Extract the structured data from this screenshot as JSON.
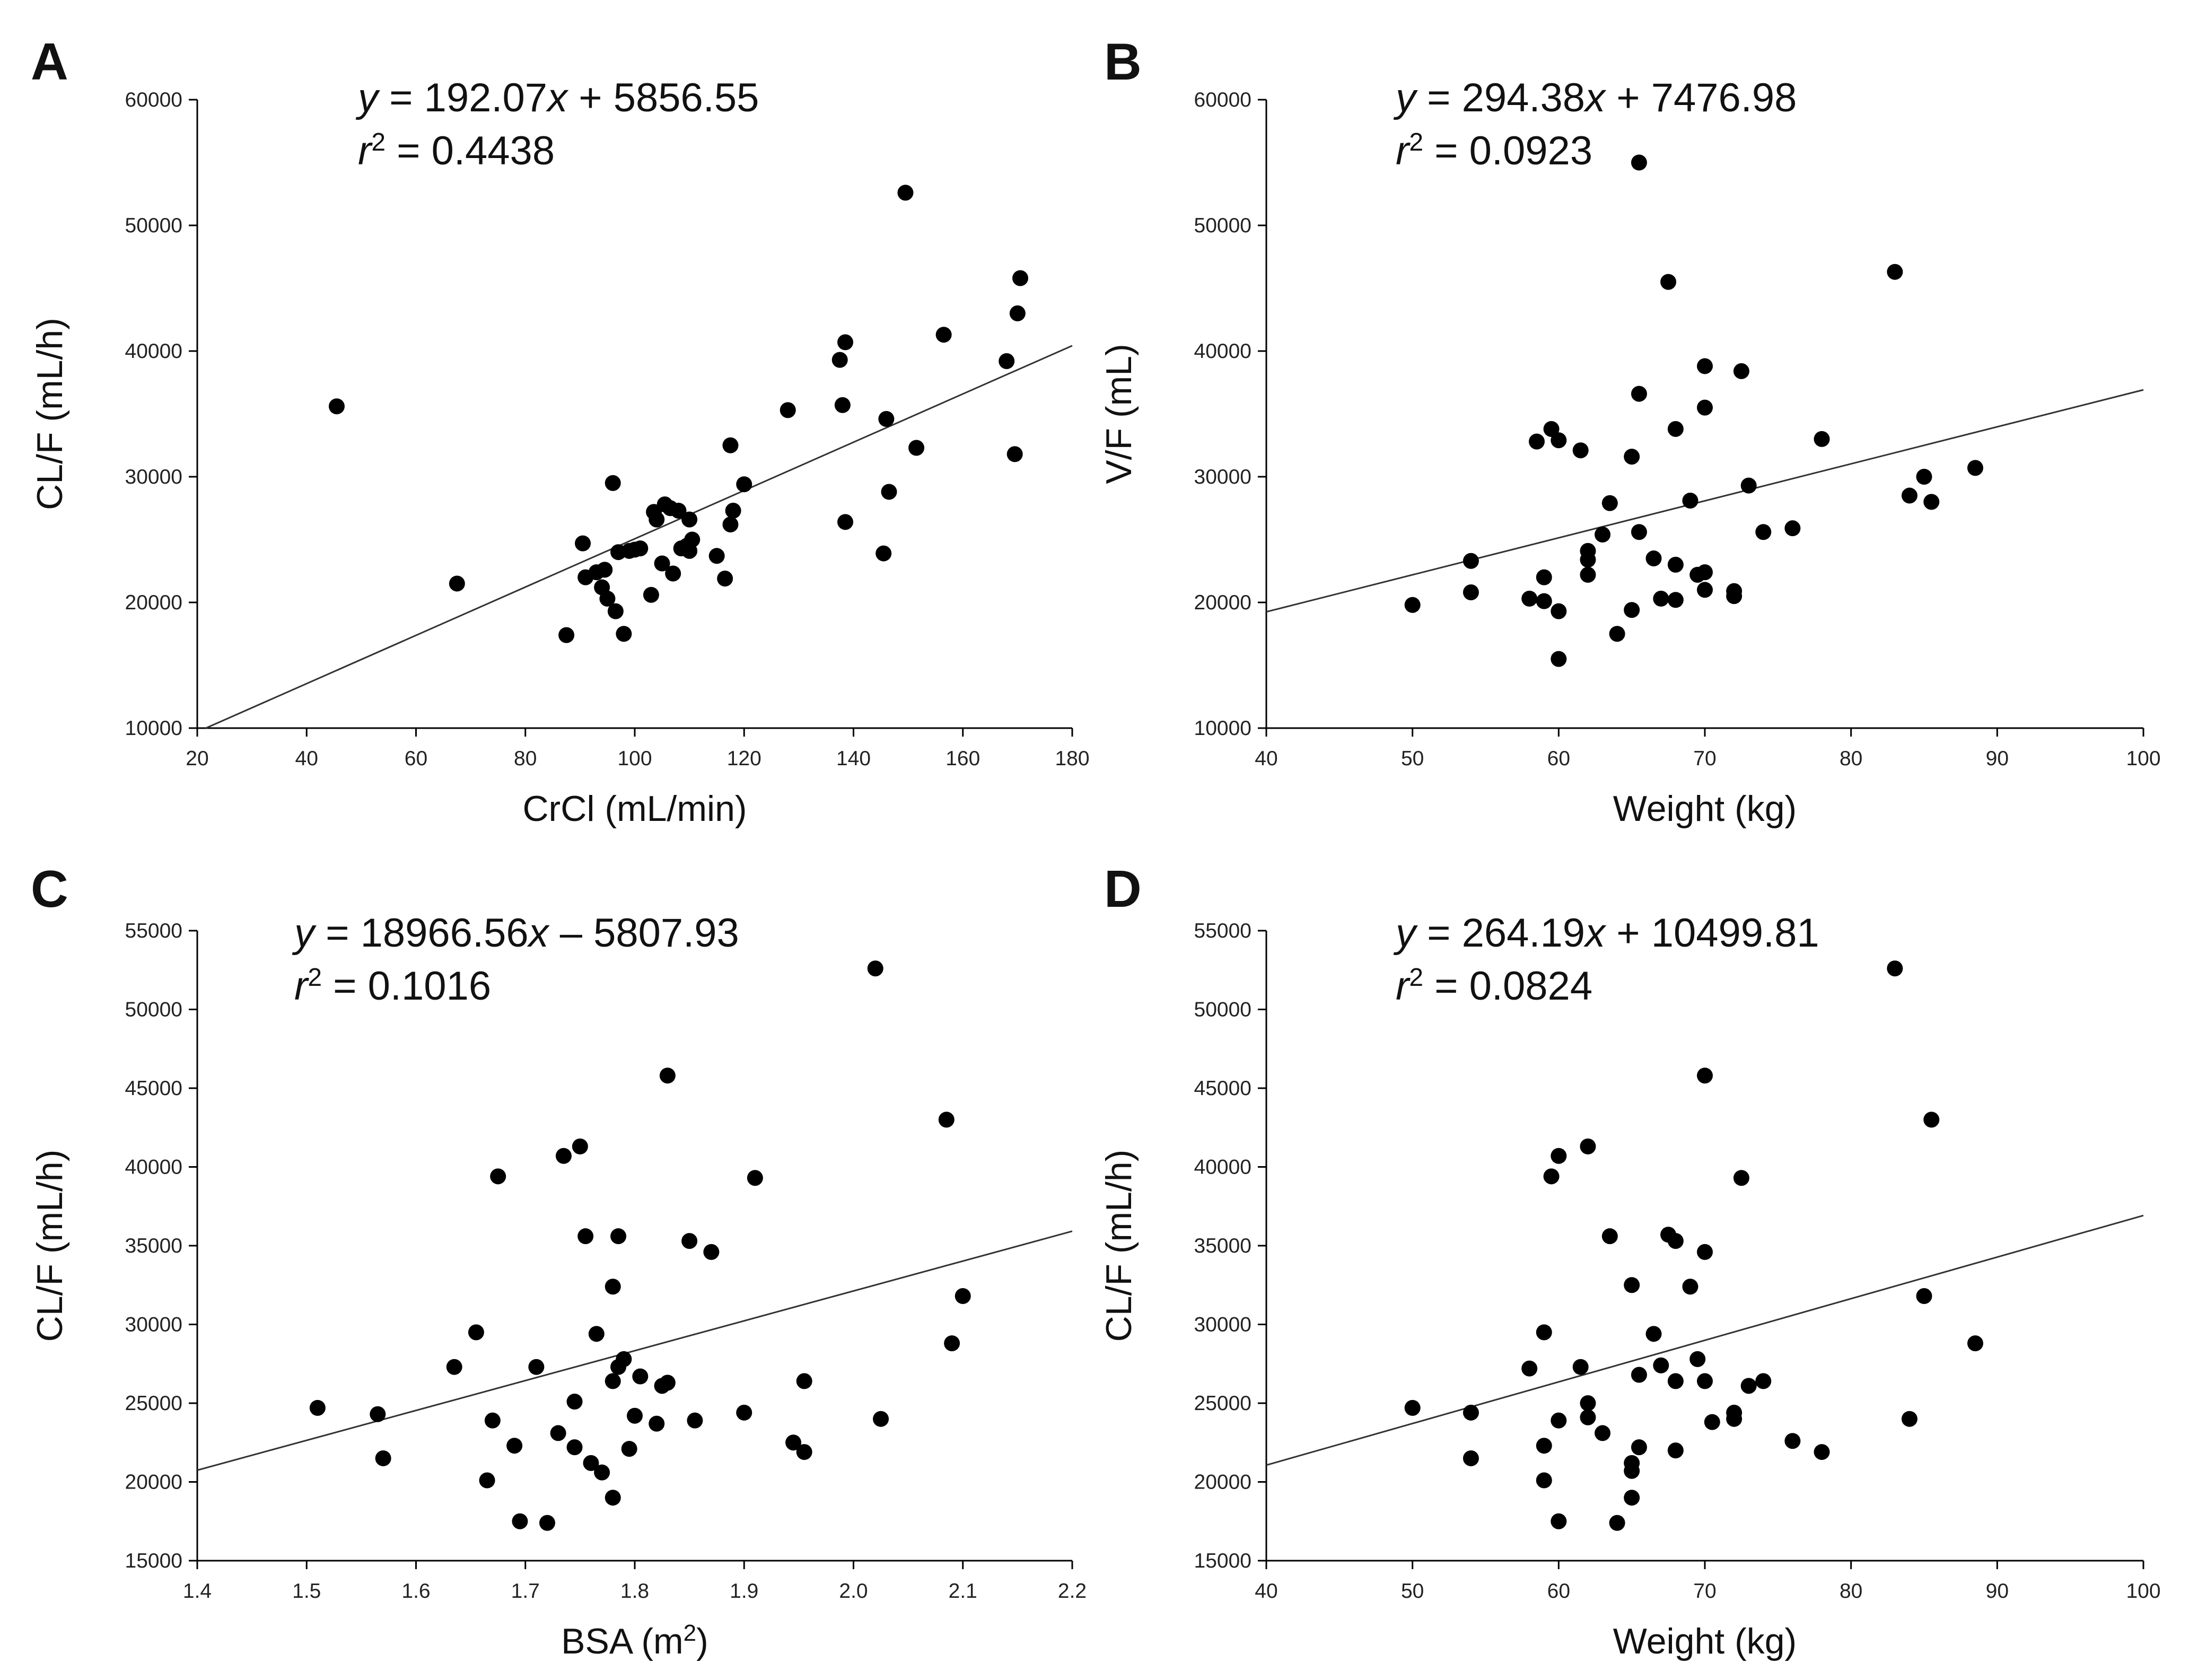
{
  "chart_data": [
    {
      "panel": "A",
      "type": "scatter",
      "xlabel": "CrCl (mL/min)",
      "ylabel": "CL/F (mL/h)",
      "xlim": [
        20,
        180
      ],
      "ylim": [
        10000,
        60000
      ],
      "xticks": [
        20,
        40,
        60,
        80,
        100,
        120,
        140,
        160,
        180
      ],
      "yticks": [
        10000,
        20000,
        30000,
        40000,
        50000,
        60000
      ],
      "equation": {
        "y_var": "y",
        "x_var": "x",
        "eq_mid": " = 192.07",
        "eq_tail": " + 5856.55",
        "r_var": "r",
        "r_exp": "2",
        "r_value": " = 0.4438"
      },
      "fit": {
        "slope": 192.07,
        "intercept": 5856.55
      },
      "points": [
        [
          45.5,
          35600
        ],
        [
          67.5,
          21500
        ],
        [
          87.5,
          17400
        ],
        [
          90.5,
          24700
        ],
        [
          91,
          22000
        ],
        [
          93,
          22400
        ],
        [
          94,
          21200
        ],
        [
          94.5,
          22600
        ],
        [
          95,
          20300
        ],
        [
          96,
          29500
        ],
        [
          96.5,
          19300
        ],
        [
          97,
          24000
        ],
        [
          98,
          17500
        ],
        [
          99,
          24100
        ],
        [
          100,
          24200
        ],
        [
          101,
          24300
        ],
        [
          103,
          20600
        ],
        [
          103.5,
          27200
        ],
        [
          104,
          26600
        ],
        [
          105,
          23100
        ],
        [
          105.5,
          27800
        ],
        [
          106.5,
          27500
        ],
        [
          107,
          22300
        ],
        [
          108,
          27300
        ],
        [
          108.5,
          24300
        ],
        [
          109.5,
          24500
        ],
        [
          110,
          26600
        ],
        [
          110.5,
          25000
        ],
        [
          110,
          24100
        ],
        [
          115,
          23700
        ],
        [
          116.5,
          21900
        ],
        [
          117.5,
          32500
        ],
        [
          117.5,
          26200
        ],
        [
          118,
          27300
        ],
        [
          120,
          29400
        ],
        [
          128,
          35300
        ],
        [
          137.5,
          39300
        ],
        [
          138,
          35700
        ],
        [
          138.5,
          26400
        ],
        [
          138.5,
          40700
        ],
        [
          145.5,
          23900
        ],
        [
          146,
          34600
        ],
        [
          146.5,
          28800
        ],
        [
          149.5,
          52600
        ],
        [
          151.5,
          32300
        ],
        [
          156.5,
          41300
        ],
        [
          168,
          39200
        ],
        [
          169.5,
          31800
        ],
        [
          170,
          43000
        ],
        [
          170.5,
          45800
        ]
      ]
    },
    {
      "panel": "B",
      "type": "scatter",
      "xlabel": "Weight (kg)",
      "ylabel": "V/F (mL)",
      "xlim": [
        40,
        100
      ],
      "ylim": [
        10000,
        60000
      ],
      "xticks": [
        40,
        50,
        60,
        70,
        80,
        90,
        100
      ],
      "yticks": [
        10000,
        20000,
        30000,
        40000,
        50000,
        60000
      ],
      "equation": {
        "y_var": "y",
        "x_var": "x",
        "eq_mid": " = 294.38",
        "eq_tail": " + 7476.98",
        "r_var": "r",
        "r_exp": "2",
        "r_value": " = 0.0923"
      },
      "fit": {
        "slope": 294.38,
        "intercept": 7476.98
      },
      "points": [
        [
          50,
          19800
        ],
        [
          54,
          23300
        ],
        [
          54,
          20800
        ],
        [
          58,
          20300
        ],
        [
          58.5,
          32800
        ],
        [
          59,
          22000
        ],
        [
          59,
          20100
        ],
        [
          59.5,
          33800
        ],
        [
          60,
          32900
        ],
        [
          60,
          15500
        ],
        [
          60,
          19300
        ],
        [
          61.5,
          32100
        ],
        [
          62,
          22200
        ],
        [
          62,
          23400
        ],
        [
          62,
          24100
        ],
        [
          63,
          25400
        ],
        [
          63.5,
          27900
        ],
        [
          64,
          17500
        ],
        [
          65,
          19400
        ],
        [
          65,
          31600
        ],
        [
          65.5,
          55000
        ],
        [
          65.5,
          25600
        ],
        [
          65.5,
          36600
        ],
        [
          66.5,
          23500
        ],
        [
          67,
          20300
        ],
        [
          67.5,
          45500
        ],
        [
          68,
          33800
        ],
        [
          68,
          20200
        ],
        [
          68,
          23000
        ],
        [
          69,
          28100
        ],
        [
          69.5,
          22200
        ],
        [
          70,
          35500
        ],
        [
          70,
          38800
        ],
        [
          70,
          22400
        ],
        [
          70,
          21000
        ],
        [
          72,
          20900
        ],
        [
          72,
          20500
        ],
        [
          72.5,
          38400
        ],
        [
          73,
          29300
        ],
        [
          74,
          25600
        ],
        [
          76,
          25900
        ],
        [
          78,
          33000
        ],
        [
          83,
          46300
        ],
        [
          84,
          28500
        ],
        [
          85,
          30000
        ],
        [
          85.5,
          28000
        ],
        [
          88.5,
          30700
        ]
      ]
    },
    {
      "panel": "C",
      "type": "scatter",
      "xlabel": "BSA (m2)",
      "ylabel": "CL/F (mL/h)",
      "xlim": [
        1.4,
        2.2
      ],
      "ylim": [
        15000,
        55000
      ],
      "xticks": [
        1.4,
        1.5,
        1.6,
        1.7,
        1.8,
        1.9,
        2.0,
        2.1,
        2.2
      ],
      "yticks": [
        15000,
        20000,
        25000,
        30000,
        35000,
        40000,
        45000,
        50000,
        55000
      ],
      "equation": {
        "y_var": "y",
        "x_var": "x",
        "eq_mid": " = 18966.56",
        "eq_tail": " – 5807.93",
        "r_var": "r",
        "r_exp": "2",
        "r_value": " = 0.1016"
      },
      "fit": {
        "slope": 18966.56,
        "intercept": -5807.93
      },
      "points": [
        [
          1.51,
          24700
        ],
        [
          1.565,
          24300
        ],
        [
          1.57,
          21500
        ],
        [
          1.635,
          27300
        ],
        [
          1.655,
          29500
        ],
        [
          1.665,
          20100
        ],
        [
          1.67,
          23900
        ],
        [
          1.675,
          39400
        ],
        [
          1.69,
          22300
        ],
        [
          1.695,
          17500
        ],
        [
          1.71,
          27300
        ],
        [
          1.72,
          17400
        ],
        [
          1.73,
          23100
        ],
        [
          1.735,
          40700
        ],
        [
          1.745,
          22200
        ],
        [
          1.745,
          25100
        ],
        [
          1.75,
          41300
        ],
        [
          1.755,
          35600
        ],
        [
          1.76,
          21200
        ],
        [
          1.765,
          29400
        ],
        [
          1.77,
          20600
        ],
        [
          1.78,
          26400
        ],
        [
          1.78,
          19000
        ],
        [
          1.78,
          32400
        ],
        [
          1.785,
          35600
        ],
        [
          1.785,
          27300
        ],
        [
          1.79,
          27800
        ],
        [
          1.795,
          22100
        ],
        [
          1.8,
          24200
        ],
        [
          1.805,
          26700
        ],
        [
          1.82,
          23700
        ],
        [
          1.825,
          26100
        ],
        [
          1.83,
          45800
        ],
        [
          1.83,
          26300
        ],
        [
          1.85,
          35300
        ],
        [
          1.855,
          23900
        ],
        [
          1.87,
          34600
        ],
        [
          1.9,
          24400
        ],
        [
          1.91,
          39300
        ],
        [
          1.945,
          22500
        ],
        [
          1.955,
          26400
        ],
        [
          1.955,
          21900
        ],
        [
          2.02,
          52600
        ],
        [
          2.025,
          24000
        ],
        [
          2.085,
          43000
        ],
        [
          2.09,
          28800
        ],
        [
          2.1,
          31800
        ]
      ]
    },
    {
      "panel": "D",
      "type": "scatter",
      "xlabel": "Weight (kg)",
      "ylabel": "CL/F (mL/h)",
      "xlim": [
        40,
        100
      ],
      "ylim": [
        15000,
        55000
      ],
      "xticks": [
        40,
        50,
        60,
        70,
        80,
        90,
        100
      ],
      "yticks": [
        15000,
        20000,
        25000,
        30000,
        35000,
        40000,
        45000,
        50000,
        55000
      ],
      "equation": {
        "y_var": "y",
        "x_var": "x",
        "eq_mid": " = 264.19",
        "eq_tail": " + 10499.81",
        "r_var": "r",
        "r_exp": "2",
        "r_value": " = 0.0824"
      },
      "fit": {
        "slope": 264.19,
        "intercept": 10499.81
      },
      "points": [
        [
          50,
          24700
        ],
        [
          54,
          24400
        ],
        [
          54,
          21500
        ],
        [
          58,
          27200
        ],
        [
          59,
          29500
        ],
        [
          59,
          22300
        ],
        [
          59,
          20100
        ],
        [
          59.5,
          39400
        ],
        [
          60,
          40700
        ],
        [
          60,
          23900
        ],
        [
          60,
          17500
        ],
        [
          61.5,
          27300
        ],
        [
          62,
          41300
        ],
        [
          62,
          25000
        ],
        [
          62,
          24100
        ],
        [
          63,
          23100
        ],
        [
          63.5,
          35600
        ],
        [
          64,
          17400
        ],
        [
          65,
          32500
        ],
        [
          65,
          20700
        ],
        [
          65,
          21200
        ],
        [
          65,
          19000
        ],
        [
          65.5,
          22200
        ],
        [
          65.5,
          26800
        ],
        [
          66.5,
          29400
        ],
        [
          67,
          27400
        ],
        [
          67.5,
          35700
        ],
        [
          68,
          35300
        ],
        [
          68,
          26400
        ],
        [
          68,
          22000
        ],
        [
          69,
          32400
        ],
        [
          69.5,
          27800
        ],
        [
          70,
          45800
        ],
        [
          70,
          34600
        ],
        [
          70,
          26400
        ],
        [
          70.5,
          23800
        ],
        [
          72,
          24400
        ],
        [
          72,
          24000
        ],
        [
          72.5,
          39300
        ],
        [
          73,
          26100
        ],
        [
          74,
          26400
        ],
        [
          76,
          22600
        ],
        [
          78,
          21900
        ],
        [
          83,
          52600
        ],
        [
          84,
          24000
        ],
        [
          85,
          31800
        ],
        [
          85.5,
          43000
        ],
        [
          88.5,
          28800
        ]
      ]
    }
  ]
}
